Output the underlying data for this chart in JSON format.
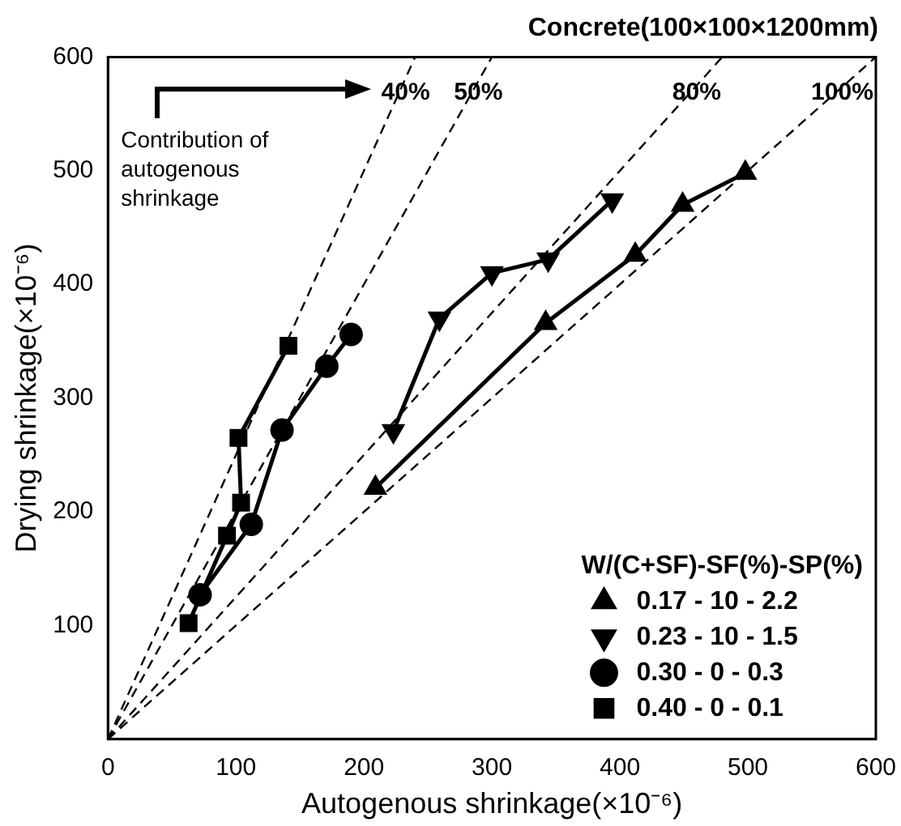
{
  "chart_data": {
    "type": "line",
    "title": "Concrete(100×100×1200mm)",
    "xlabel": "Autogenous shrinkage(×10⁻⁶)",
    "ylabel": "Drying shrinkage(×10⁻⁶)",
    "legend_title": "W/(C+SF)-SF(%)-SP(%)",
    "legend": "bottom right",
    "grid": false,
    "xlim": [
      0,
      600
    ],
    "ylim": [
      0,
      600
    ],
    "xticks": [
      0,
      100,
      200,
      300,
      400,
      500,
      600
    ],
    "yticks": [
      100,
      200,
      300,
      400,
      500,
      600
    ],
    "annotations": [
      "Contribution of autogenous shrinkage"
    ],
    "series": [
      {
        "name": "0.17 - 10 - 2.2",
        "color": "#000000",
        "marker": "triangle",
        "x": [
          209,
          342,
          412,
          449,
          498
        ],
        "values": [
          221,
          366,
          426,
          470,
          498
        ]
      },
      {
        "name": "0.23 - 10 - 1.5",
        "color": "#000000",
        "marker": "triangle-down",
        "x": [
          223,
          259,
          300,
          344,
          394
        ],
        "values": [
          271,
          370,
          410,
          422,
          474
        ]
      },
      {
        "name": "0.30 - 0 - 0.3",
        "color": "#000000",
        "marker": "circle",
        "x": [
          72,
          112,
          136,
          171,
          190
        ],
        "values": [
          127,
          189,
          272,
          328,
          356
        ]
      },
      {
        "name": "0.40 - 0 - 0.1",
        "color": "#000000",
        "marker": "square",
        "x": [
          63,
          93,
          104,
          102,
          141
        ],
        "values": [
          102,
          179,
          208,
          265,
          346
        ]
      },
      {
        "name": "40%",
        "color": "#000000",
        "marker": "none",
        "line_style": "dashed",
        "x": [
          0,
          240
        ],
        "values": [
          0,
          600
        ]
      },
      {
        "name": "50%",
        "color": "#000000",
        "marker": "none",
        "line_style": "dashed",
        "x": [
          0,
          300
        ],
        "values": [
          0,
          600
        ]
      },
      {
        "name": "80%",
        "color": "#000000",
        "marker": "none",
        "line_style": "dashed",
        "x": [
          0,
          480
        ],
        "values": [
          0,
          600
        ]
      },
      {
        "name": "100%",
        "color": "#000000",
        "marker": "none",
        "line_style": "dashed",
        "x": [
          0,
          600
        ],
        "values": [
          0,
          600
        ]
      }
    ]
  }
}
